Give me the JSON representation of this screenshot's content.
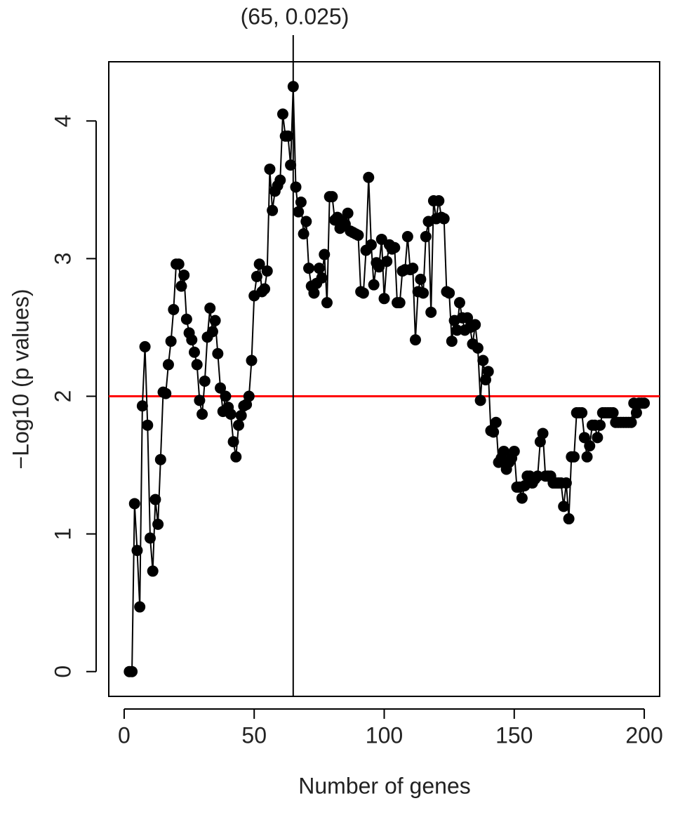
{
  "chart_data": {
    "type": "line",
    "xlabel": "Number of genes",
    "ylabel": "−Log10 (p values)",
    "annotation": "(65, 0.025)",
    "vline": 65,
    "hline": 2,
    "hline_color": "#ff0000",
    "color": "#000000",
    "xlim": [
      -5.92,
      205.92
    ],
    "ylim": [
      -0.18,
      4.43
    ],
    "xticks": [
      0,
      50,
      100,
      150,
      200
    ],
    "yticks": [
      0,
      1,
      2,
      3,
      4
    ],
    "x": [
      2,
      3,
      4,
      5,
      6,
      7,
      8,
      9,
      10,
      11,
      12,
      13,
      14,
      15,
      16,
      17,
      18,
      19,
      20,
      21,
      22,
      23,
      24,
      25,
      26,
      27,
      28,
      29,
      30,
      31,
      32,
      33,
      34,
      35,
      36,
      37,
      38,
      39,
      40,
      41,
      42,
      43,
      44,
      45,
      46,
      47,
      48,
      49,
      50,
      51,
      52,
      53,
      54,
      55,
      56,
      57,
      58,
      59,
      60,
      61,
      62,
      63,
      64,
      65,
      66,
      67,
      68,
      69,
      70,
      71,
      72,
      73,
      74,
      75,
      76,
      77,
      78,
      79,
      80,
      81,
      82,
      83,
      84,
      85,
      86,
      87,
      88,
      89,
      90,
      91,
      92,
      93,
      94,
      95,
      96,
      97,
      98,
      99,
      100,
      101,
      102,
      103,
      104,
      105,
      106,
      107,
      108,
      109,
      110,
      111,
      112,
      113,
      114,
      115,
      116,
      117,
      118,
      119,
      120,
      121,
      122,
      123,
      124,
      125,
      126,
      127,
      128,
      129,
      130,
      131,
      132,
      133,
      134,
      135,
      136,
      137,
      138,
      139,
      140,
      141,
      142,
      143,
      144,
      145,
      146,
      147,
      148,
      149,
      150,
      151,
      152,
      153,
      154,
      155,
      156,
      157,
      158,
      159,
      160,
      161,
      162,
      163,
      164,
      165,
      166,
      167,
      168,
      169,
      170,
      171,
      172,
      173,
      174,
      175,
      176,
      177,
      178,
      179,
      180,
      181,
      182,
      183,
      184,
      185,
      186,
      187,
      188,
      189,
      190,
      191,
      192,
      193,
      194,
      195,
      196,
      197,
      198,
      199,
      200
    ],
    "values": [
      0,
      0,
      1.22,
      0.88,
      0.47,
      1.93,
      2.36,
      1.79,
      0.97,
      0.73,
      1.25,
      1.07,
      1.54,
      2.03,
      2.02,
      2.23,
      2.4,
      2.63,
      2.96,
      2.96,
      2.8,
      2.88,
      2.56,
      2.46,
      2.41,
      2.32,
      2.23,
      1.97,
      1.87,
      2.11,
      2.43,
      2.64,
      2.47,
      2.55,
      2.31,
      2.06,
      1.89,
      2.0,
      1.92,
      1.87,
      1.67,
      1.56,
      1.79,
      1.86,
      1.93,
      1.94,
      2.0,
      2.26,
      2.73,
      2.87,
      2.96,
      2.76,
      2.78,
      2.91,
      3.65,
      3.35,
      3.49,
      3.53,
      3.57,
      4.05,
      3.89,
      3.89,
      3.68,
      4.25,
      3.52,
      3.34,
      3.41,
      3.18,
      3.27,
      2.93,
      2.8,
      2.75,
      2.82,
      2.93,
      2.86,
      3.03,
      2.68,
      3.45,
      3.45,
      3.28,
      3.3,
      3.22,
      3.27,
      3.25,
      3.33,
      3.2,
      3.19,
      3.18,
      3.17,
      2.76,
      2.75,
      3.06,
      3.59,
      3.1,
      2.81,
      2.97,
      2.94,
      3.14,
      2.71,
      2.98,
      3.1,
      3.07,
      3.08,
      2.68,
      2.68,
      2.91,
      2.92,
      3.16,
      2.92,
      2.93,
      2.41,
      2.76,
      2.85,
      2.75,
      3.16,
      3.27,
      2.61,
      3.42,
      3.29,
      3.42,
      3.3,
      3.29,
      2.76,
      2.75,
      2.4,
      2.55,
      2.48,
      2.68,
      2.57,
      2.48,
      2.57,
      2.5,
      2.38,
      2.52,
      2.35,
      1.97,
      2.26,
      2.12,
      2.18,
      1.75,
      1.74,
      1.81,
      1.52,
      1.55,
      1.6,
      1.47,
      1.52,
      1.55,
      1.6,
      1.34,
      1.34,
      1.26,
      1.35,
      1.42,
      1.42,
      1.37,
      1.4,
      1.42,
      1.67,
      1.73,
      1.42,
      1.42,
      1.42,
      1.37,
      1.37,
      1.37,
      1.37,
      1.2,
      1.37,
      1.11,
      1.56,
      1.56,
      1.88,
      1.88,
      1.88,
      1.7,
      1.56,
      1.64,
      1.79,
      1.79,
      1.7,
      1.79,
      1.88,
      1.88,
      1.88,
      1.88,
      1.88,
      1.81,
      1.81,
      1.81,
      1.81,
      1.81,
      1.81,
      1.81,
      1.95,
      1.88,
      1.95,
      1.95,
      1.95
    ]
  }
}
